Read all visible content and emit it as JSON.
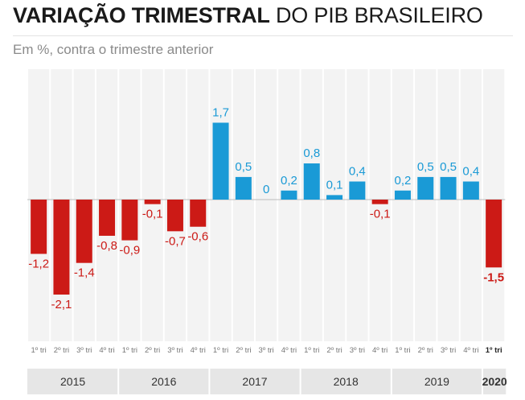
{
  "title_bold": "VARIAÇÃO TRIMESTRAL",
  "title_light": "DO PIB BRASILEIRO",
  "subtitle": "Em %, contra o trimestre anterior",
  "colors": {
    "negative": "#cc1a16",
    "positive": "#1a9ad6",
    "background_band": "#f3f3f3",
    "year_band": "#e6e6e6",
    "text": "#333333",
    "quarter_text": "#777777",
    "zero_line": "#bdbdbd"
  },
  "chart_data": {
    "type": "bar",
    "title": "VARIAÇÃO TRIMESTRAL DO PIB BRASILEIRO",
    "subtitle": "Em %, contra o trimestre anterior",
    "quarter_labels": [
      "1º tri",
      "2º tri",
      "3º tri",
      "4º tri",
      "1º tri",
      "2º tri",
      "3º tri",
      "4º tri",
      "1º tri",
      "2º tri",
      "3º tri",
      "4º tri",
      "1º tri",
      "2º tri",
      "3º tri",
      "4º tri",
      "1º tri",
      "2º tri",
      "3º tri",
      "4º tri",
      "1º tri"
    ],
    "years": [
      {
        "label": "2015",
        "quarters": 4
      },
      {
        "label": "2016",
        "quarters": 4
      },
      {
        "label": "2017",
        "quarters": 4
      },
      {
        "label": "2018",
        "quarters": 4
      },
      {
        "label": "2019",
        "quarters": 4
      },
      {
        "label": "2020",
        "quarters": 1
      }
    ],
    "values": [
      -1.2,
      -2.1,
      -1.4,
      -0.8,
      -0.9,
      -0.1,
      -0.7,
      -0.6,
      1.7,
      0.5,
      0,
      0.2,
      0.8,
      0.1,
      0.4,
      -0.1,
      0.2,
      0.5,
      0.5,
      0.4,
      -1.5
    ],
    "value_labels": [
      "-1,2",
      "-2,1",
      "-1,4",
      "-0,8",
      "-0,9",
      "-0,1",
      "-0,7",
      "-0,6",
      "1,7",
      "0,5",
      "0",
      "0,2",
      "0,8",
      "0,1",
      "0,4",
      "-0,1",
      "0,2",
      "0,5",
      "0,5",
      "0,4",
      "-1,5"
    ],
    "bar_colors": [
      "negative",
      "negative",
      "negative",
      "negative",
      "negative",
      "negative",
      "negative",
      "negative",
      "positive",
      "positive",
      "positive",
      "positive",
      "positive",
      "positive",
      "positive",
      "negative",
      "positive",
      "positive",
      "positive",
      "positive",
      "negative"
    ],
    "highlight_last": true,
    "ylim": [
      -2.1,
      1.7
    ]
  }
}
